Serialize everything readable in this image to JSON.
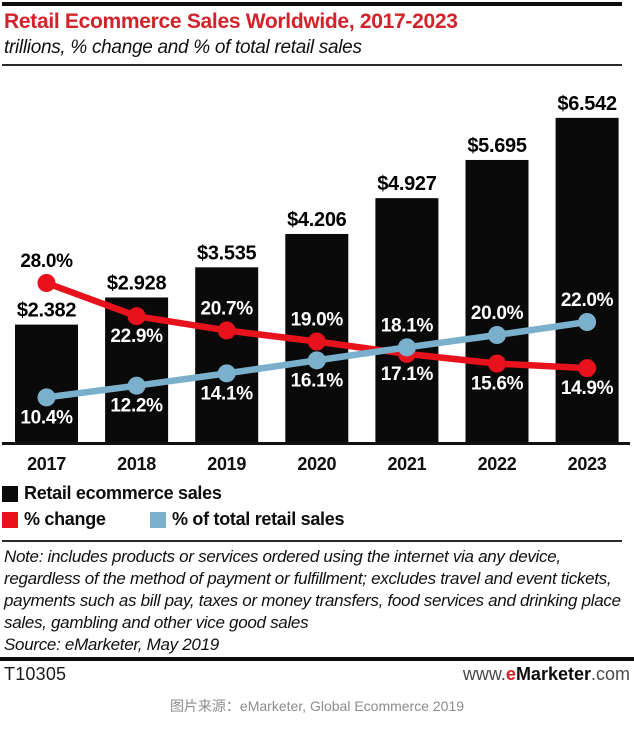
{
  "header": {
    "title": "Retail Ecommerce Sales Worldwide, 2017-2023",
    "subtitle": "trillions, % change and % of total retail sales"
  },
  "chart_data": {
    "type": "bar",
    "subtype": "bar-with-two-lines-combo",
    "title": "Retail Ecommerce Sales Worldwide, 2017-2023",
    "xlabel": "",
    "ylabel": "trillions, % change and % of total retail sales",
    "grid": false,
    "legend_position": "bottom-left",
    "categories": [
      "2017",
      "2018",
      "2019",
      "2020",
      "2021",
      "2022",
      "2023"
    ],
    "bar_series": {
      "name": "Retail ecommerce sales",
      "unit": "$ trillions",
      "values": [
        2.382,
        2.928,
        3.535,
        4.206,
        4.927,
        5.695,
        6.542
      ],
      "labels": [
        "$2.382",
        "$2.928",
        "$3.535",
        "$4.206",
        "$4.927",
        "$5.695",
        "$6.542"
      ],
      "color": "#0a0a0a",
      "label_color": "#000000"
    },
    "line_series": [
      {
        "name": "% change",
        "values": [
          28.0,
          22.9,
          20.7,
          19.0,
          17.1,
          15.6,
          14.9
        ],
        "labels": [
          "28.0%",
          "22.9%",
          "20.7%",
          "19.0%",
          "17.1%",
          "15.6%",
          "14.9%"
        ],
        "color": "#e8121c",
        "label_side": [
          "above",
          "below",
          "above",
          "above",
          "below",
          "below",
          "below"
        ],
        "label_colors": [
          "#000000",
          "#ffffff",
          "#ffffff",
          "#ffffff",
          "#ffffff",
          "#ffffff",
          "#ffffff"
        ]
      },
      {
        "name": "% of total retail sales",
        "values": [
          10.4,
          12.2,
          14.1,
          16.1,
          18.1,
          20.0,
          22.0
        ],
        "labels": [
          "10.4%",
          "12.2%",
          "14.1%",
          "16.1%",
          "18.1%",
          "20.0%",
          "22.0%"
        ],
        "color": "#7bb0cd",
        "label_side": [
          "below",
          "below",
          "below",
          "below",
          "above",
          "above",
          "above"
        ],
        "label_colors": [
          "#ffffff",
          "#ffffff",
          "#ffffff",
          "#ffffff",
          "#ffffff",
          "#ffffff",
          "#ffffff"
        ]
      }
    ],
    "axis_color": "#111111",
    "category_label_color": "#111111"
  },
  "legend": {
    "items": [
      {
        "label": "Retail ecommerce sales",
        "color": "#0a0a0a"
      },
      {
        "label": "% change",
        "color": "#e8121c"
      },
      {
        "label": "% of total retail sales",
        "color": "#7bb0cd"
      }
    ]
  },
  "note": {
    "text": "Note: includes products or services ordered using the internet via any device, regardless of the method of payment or fulfillment; excludes travel and event tickets, payments such as bill pay, taxes or money transfers, food services and drinking place sales, gambling and other vice good sales",
    "source": "Source: eMarketer, May 2019"
  },
  "footer": {
    "chart_id": "T10305",
    "website": {
      "prefix": "www.",
      "e": "e",
      "brand": "Marketer",
      "suffix": ".com"
    }
  },
  "caption": "图片来源：eMarketer, Global Ecommerce 2019"
}
